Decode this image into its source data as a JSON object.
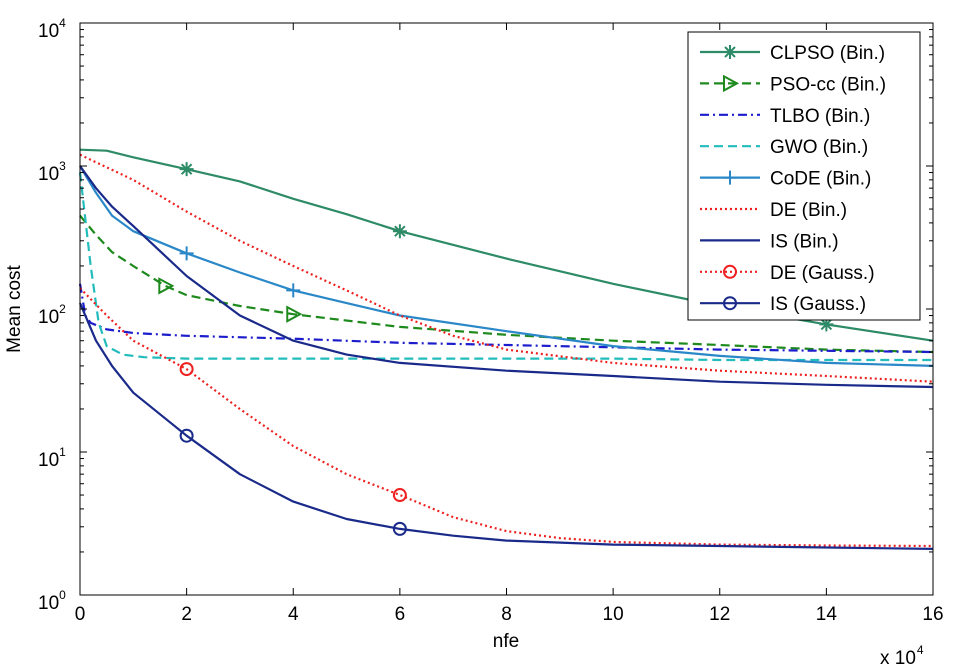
{
  "chart_data": {
    "type": "line",
    "title": "",
    "xlabel": "nfe",
    "ylabel": "Mean cost",
    "x_multiplier_label": "x 10",
    "x_multiplier_exponent": "4",
    "xlim": [
      0,
      16
    ],
    "ylim_log10": [
      0,
      4
    ],
    "xticks": [
      "0",
      "2",
      "4",
      "6",
      "8",
      "10",
      "12",
      "14",
      "16"
    ],
    "yticks": [
      {
        "base": "10",
        "exp": "0",
        "log": 0
      },
      {
        "base": "10",
        "exp": "1",
        "log": 1
      },
      {
        "base": "10",
        "exp": "2",
        "log": 2
      },
      {
        "base": "10",
        "exp": "3",
        "log": 3
      },
      {
        "base": "10",
        "exp": "4",
        "log": 4
      }
    ],
    "legend_position": "top-right",
    "series": [
      {
        "name": "CLPSO (Bin.)",
        "color": "#2e8b67",
        "dash": "solid",
        "marker": "star",
        "x": [
          0,
          0.5,
          1,
          2,
          3,
          4,
          5,
          6,
          8,
          10,
          12,
          14,
          16
        ],
        "y": [
          1300,
          1280,
          1150,
          950,
          780,
          590,
          460,
          350,
          225,
          150,
          105,
          78,
          60
        ],
        "marker_x": [
          2,
          6,
          14
        ]
      },
      {
        "name": "PSO-cc (Bin.)",
        "color": "#1e8a1e",
        "dash": "dashed",
        "marker": "triangle-right",
        "x": [
          0,
          0.3,
          0.6,
          1,
          1.6,
          2,
          3,
          4,
          6,
          8,
          10,
          12,
          14,
          16
        ],
        "y": [
          450,
          330,
          250,
          200,
          145,
          125,
          105,
          92,
          75,
          66,
          60,
          56,
          52,
          50
        ],
        "marker_x": [
          1.6,
          4
        ]
      },
      {
        "name": "TLBO (Bin.)",
        "color": "#1c1ccc",
        "dash": "dashdot",
        "marker": "none",
        "x": [
          0,
          0.1,
          0.2,
          0.5,
          1,
          2,
          4,
          6,
          8,
          10,
          12,
          14,
          16
        ],
        "y": [
          150,
          90,
          80,
          72,
          68,
          65,
          62,
          58,
          56,
          54,
          52,
          51,
          50
        ],
        "marker_x": []
      },
      {
        "name": "GWO (Bin.)",
        "color": "#22bcbc",
        "dash": "dashed",
        "marker": "none",
        "x": [
          0,
          0.2,
          0.35,
          0.5,
          0.8,
          1.2,
          2,
          4,
          6,
          8,
          10,
          12,
          14,
          16
        ],
        "y": [
          900,
          200,
          80,
          55,
          48,
          46,
          45,
          45,
          45,
          45,
          45,
          44,
          44,
          44
        ],
        "marker_x": []
      },
      {
        "name": "CoDE (Bin.)",
        "color": "#2a88c8",
        "dash": "solid",
        "marker": "plus",
        "x": [
          0,
          0.3,
          0.6,
          1,
          2,
          3,
          4,
          5,
          6,
          8,
          10,
          12,
          14,
          16
        ],
        "y": [
          1000,
          650,
          450,
          350,
          245,
          180,
          135,
          110,
          90,
          70,
          55,
          47,
          42,
          40
        ],
        "marker_x": [
          2,
          4
        ]
      },
      {
        "name": "DE (Bin.)",
        "color": "#ee2020",
        "dash": "dotted",
        "marker": "none",
        "x": [
          0,
          1,
          2,
          3,
          4,
          5,
          6,
          7,
          8,
          10,
          12,
          14,
          16
        ],
        "y": [
          1200,
          800,
          480,
          300,
          200,
          135,
          90,
          65,
          52,
          42,
          37,
          34,
          31
        ],
        "marker_x": []
      },
      {
        "name": "IS (Bin.)",
        "color": "#1a2a8a",
        "dash": "solid",
        "marker": "none",
        "x": [
          0,
          0.3,
          0.6,
          1,
          2,
          3,
          4,
          5,
          6,
          8,
          10,
          12,
          14,
          16
        ],
        "y": [
          1000,
          700,
          520,
          380,
          170,
          90,
          60,
          48,
          42,
          37,
          34,
          31,
          29.5,
          28.5
        ],
        "marker_x": []
      },
      {
        "name": "DE (Gauss.)",
        "color": "#ee2020",
        "dash": "dotted",
        "marker": "circle",
        "x": [
          0,
          0.5,
          1,
          2,
          3,
          4,
          5,
          6,
          7,
          8,
          9,
          10,
          12,
          14,
          16
        ],
        "y": [
          140,
          90,
          60,
          38,
          20,
          11,
          7,
          5,
          3.5,
          2.8,
          2.5,
          2.35,
          2.25,
          2.22,
          2.2
        ],
        "marker_x": [
          2,
          6
        ]
      },
      {
        "name": "IS (Gauss.)",
        "color": "#1a2a8a",
        "dash": "solid",
        "marker": "circle",
        "x": [
          0,
          0.3,
          0.6,
          1,
          2,
          3,
          4,
          5,
          6,
          7,
          8,
          10,
          12,
          14,
          16
        ],
        "y": [
          110,
          60,
          40,
          26,
          13,
          7,
          4.5,
          3.4,
          2.9,
          2.6,
          2.4,
          2.25,
          2.2,
          2.15,
          2.1
        ],
        "marker_x": [
          2,
          6
        ]
      }
    ]
  }
}
